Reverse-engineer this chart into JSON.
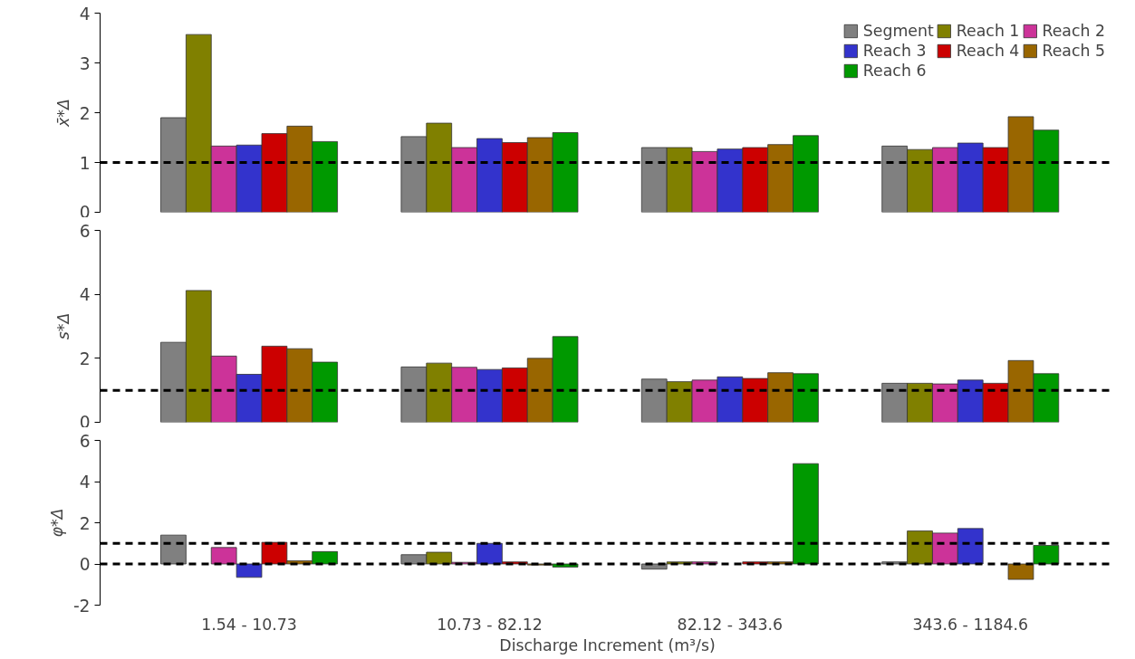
{
  "chart_data": [
    {
      "type": "bar",
      "ylabel": "x̄*Δ",
      "ylim": [
        0,
        4
      ],
      "yticks": [
        0,
        1,
        2,
        3,
        4
      ],
      "tick_labels": "y",
      "legend": "top right",
      "grid": false,
      "series": [
        {
          "name": "Segment",
          "color": "#808080",
          "values": [
            1.9,
            1.52,
            1.3,
            1.33
          ]
        },
        {
          "name": "Reach 1",
          "color": "#808000",
          "values": [
            3.57,
            1.79,
            1.3,
            1.26
          ]
        },
        {
          "name": "Reach 2",
          "color": "#cc3399",
          "values": [
            1.33,
            1.3,
            1.22,
            1.3
          ]
        },
        {
          "name": "Reach 3",
          "color": "#3333cc",
          "values": [
            1.35,
            1.48,
            1.27,
            1.39
          ]
        },
        {
          "name": "Reach 4",
          "color": "#cc0000",
          "values": [
            1.58,
            1.4,
            1.3,
            1.3
          ]
        },
        {
          "name": "Reach 5",
          "color": "#996600",
          "values": [
            1.73,
            1.5,
            1.36,
            1.92
          ]
        },
        {
          "name": "Reach 6",
          "color": "#009900",
          "values": [
            1.42,
            1.6,
            1.54,
            1.65
          ]
        }
      ],
      "ref_lines": [
        {
          "axis": "y",
          "value": 1,
          "color": "#000000",
          "line_style": "dashed"
        }
      ]
    },
    {
      "type": "bar",
      "ylabel": "s*Δ",
      "ylim": [
        0,
        6
      ],
      "yticks": [
        0,
        2,
        4,
        6
      ],
      "tick_labels": "y",
      "grid": false,
      "series": [
        {
          "color": "#808080",
          "values": [
            2.5,
            1.73,
            1.35,
            1.22
          ]
        },
        {
          "color": "#808000",
          "values": [
            4.12,
            1.85,
            1.27,
            1.22
          ]
        },
        {
          "color": "#cc3399",
          "values": [
            2.07,
            1.72,
            1.32,
            1.2
          ]
        },
        {
          "color": "#3333cc",
          "values": [
            1.5,
            1.65,
            1.42,
            1.32
          ]
        },
        {
          "color": "#cc0000",
          "values": [
            2.38,
            1.7,
            1.37,
            1.22
          ]
        },
        {
          "color": "#996600",
          "values": [
            2.3,
            2.0,
            1.55,
            1.93
          ]
        },
        {
          "color": "#009900",
          "values": [
            1.88,
            2.68,
            1.52,
            1.52
          ]
        }
      ],
      "ref_lines": [
        {
          "axis": "y",
          "value": 1,
          "color": "#000000",
          "line_style": "dashed"
        }
      ]
    },
    {
      "type": "bar",
      "ylabel": "φ*Δ",
      "xlabel": "Discharge Increment (m³/s)",
      "categories": [
        "1.54 - 10.73",
        "10.73 - 82.12",
        "82.12 - 343.6",
        "343.6 - 1184.6"
      ],
      "ylim": [
        -2,
        6
      ],
      "yticks": [
        -2,
        0,
        2,
        4,
        6
      ],
      "grid": false,
      "series": [
        {
          "color": "#808080",
          "values": [
            1.4,
            0.45,
            -0.25,
            0.1
          ]
        },
        {
          "color": "#808000",
          "values": [
            null,
            0.57,
            0.1,
            1.6
          ]
        },
        {
          "color": "#cc3399",
          "values": [
            0.8,
            0.08,
            0.1,
            1.5
          ]
        },
        {
          "color": "#3333cc",
          "values": [
            -0.65,
            1.0,
            null,
            1.72
          ]
        },
        {
          "color": "#cc0000",
          "values": [
            1.05,
            0.1,
            0.1,
            null
          ]
        },
        {
          "color": "#996600",
          "values": [
            0.15,
            -0.05,
            0.1,
            -0.75
          ]
        },
        {
          "color": "#009900",
          "values": [
            0.6,
            -0.15,
            4.87,
            0.9
          ]
        }
      ],
      "ref_lines": [
        {
          "axis": "y",
          "value": 1,
          "color": "#000000",
          "line_style": "dashed"
        },
        {
          "axis": "y",
          "value": 0,
          "color": "#000000",
          "line_style": "dashed"
        }
      ]
    }
  ]
}
